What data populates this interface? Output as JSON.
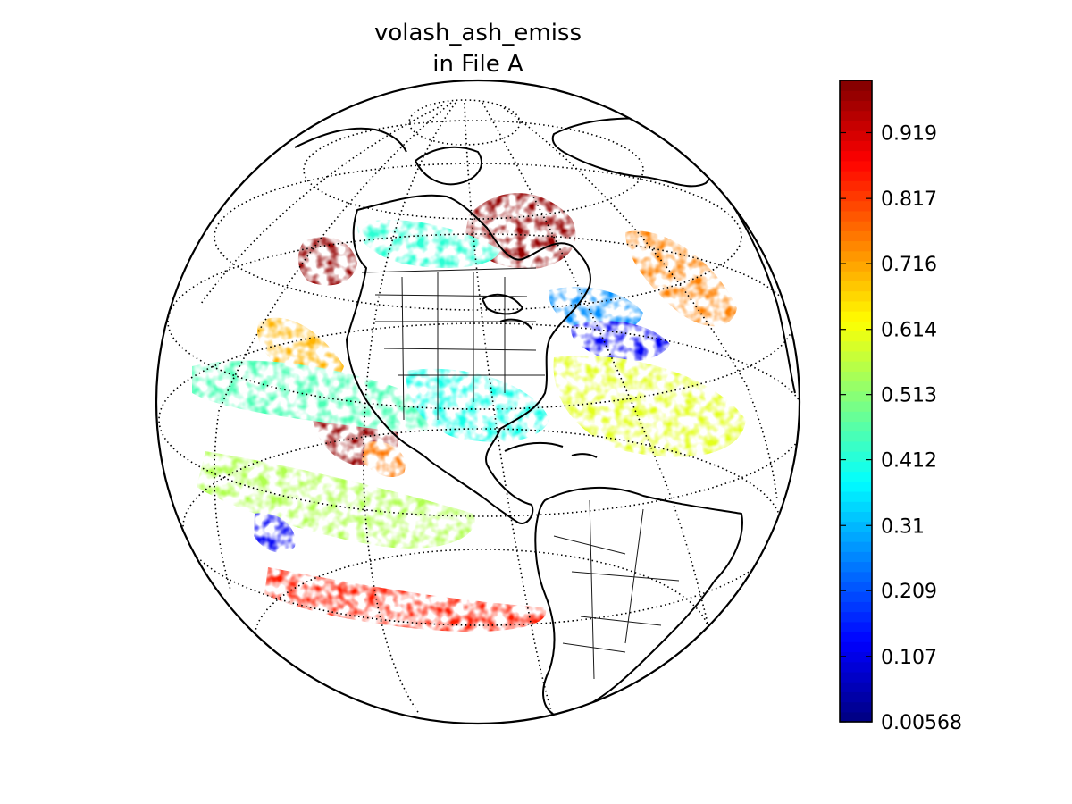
{
  "title": {
    "line1": "volash_ash_emiss",
    "line2": "in File A"
  },
  "map": {
    "projection": "orthographic",
    "region_shown": "Western Hemisphere (North and South America)",
    "graticule": "dotted",
    "coastlines": true,
    "political_boundaries": true,
    "missing_data": "white"
  },
  "colorbar": {
    "colormap": "jet",
    "orientation": "vertical",
    "placement": "right",
    "vmin": 0.00568,
    "vmax": 1.0,
    "ticks": [
      {
        "value": 0.00568,
        "label": "0.00568"
      },
      {
        "value": 0.107,
        "label": "0.107"
      },
      {
        "value": 0.209,
        "label": "0.209"
      },
      {
        "value": 0.31,
        "label": "0.31"
      },
      {
        "value": 0.412,
        "label": "0.412"
      },
      {
        "value": 0.513,
        "label": "0.513"
      },
      {
        "value": 0.614,
        "label": "0.614"
      },
      {
        "value": 0.716,
        "label": "0.716"
      },
      {
        "value": 0.817,
        "label": "0.817"
      },
      {
        "value": 0.919,
        "label": "0.919"
      }
    ],
    "colors": [
      "#00007f",
      "#0000ff",
      "#007fff",
      "#00ffff",
      "#7fff7f",
      "#ffff00",
      "#ff7f00",
      "#ff0000",
      "#7f0000"
    ]
  },
  "field_patches": [
    {
      "value": 0.98,
      "region": "Hudson Bay / Labrador"
    },
    {
      "value": 0.98,
      "region": "Pacific off Baja California"
    },
    {
      "value": 0.98,
      "region": "Gulf of Alaska"
    },
    {
      "value": 0.7,
      "region": "Eastern Pacific west of California"
    },
    {
      "value": 0.76,
      "region": "Eastern tropical Pacific"
    },
    {
      "value": 0.45,
      "region": "Central Pacific band"
    },
    {
      "value": 0.42,
      "region": "Western Canada"
    },
    {
      "value": 0.27,
      "region": "North Atlantic off Newfoundland"
    },
    {
      "value": 0.12,
      "region": "Central North Atlantic"
    },
    {
      "value": 0.75,
      "region": "North Atlantic east"
    },
    {
      "value": 0.6,
      "region": "Tropical Atlantic"
    },
    {
      "value": 0.55,
      "region": "Southeast Pacific"
    },
    {
      "value": 0.85,
      "region": "South Pacific band"
    },
    {
      "value": 0.12,
      "region": "Western South Pacific"
    },
    {
      "value": 0.4,
      "region": "Gulf of Mexico / Caribbean"
    }
  ]
}
